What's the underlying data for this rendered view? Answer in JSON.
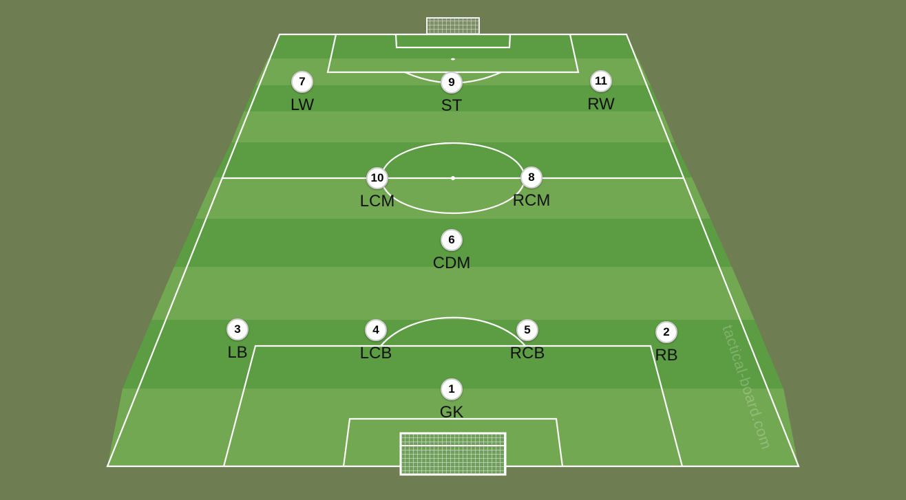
{
  "watermark": "tactical-board.com",
  "colors": {
    "background": "#6e7d52",
    "pitch_dark": "#5c9c42",
    "pitch_light": "#73a852",
    "lines": "#ffffff"
  },
  "players": [
    {
      "number": "1",
      "role": "GK"
    },
    {
      "number": "2",
      "role": "RB"
    },
    {
      "number": "3",
      "role": "LB"
    },
    {
      "number": "4",
      "role": "LCB"
    },
    {
      "number": "5",
      "role": "RCB"
    },
    {
      "number": "6",
      "role": "CDM"
    },
    {
      "number": "10",
      "role": "LCM"
    },
    {
      "number": "8",
      "role": "RCM"
    },
    {
      "number": "7",
      "role": "LW"
    },
    {
      "number": "9",
      "role": "ST"
    },
    {
      "number": "11",
      "role": "RW"
    }
  ]
}
